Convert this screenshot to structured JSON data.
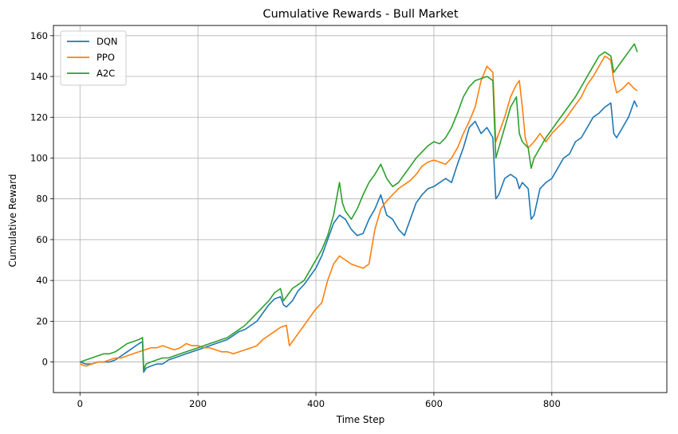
{
  "chart_data": {
    "type": "line",
    "title": "Cumulative Rewards - Bull Market",
    "xlabel": "Time Step",
    "ylabel": "Cumulative Reward",
    "xlim": [
      -45,
      995
    ],
    "ylim": [
      -15,
      165
    ],
    "xticks": [
      0,
      200,
      400,
      600,
      800
    ],
    "yticks": [
      0,
      20,
      40,
      60,
      80,
      100,
      120,
      140,
      160
    ],
    "grid": true,
    "legend_position": "top-left",
    "series": [
      {
        "name": "DQN",
        "color": "#1f77b4",
        "points": [
          [
            0,
            0
          ],
          [
            10,
            -1
          ],
          [
            20,
            -1
          ],
          [
            30,
            0
          ],
          [
            40,
            0
          ],
          [
            50,
            0
          ],
          [
            60,
            1
          ],
          [
            70,
            3
          ],
          [
            80,
            5
          ],
          [
            90,
            7
          ],
          [
            100,
            9
          ],
          [
            106,
            10
          ],
          [
            108,
            -5
          ],
          [
            112,
            -3
          ],
          [
            120,
            -2
          ],
          [
            130,
            -1
          ],
          [
            140,
            -1
          ],
          [
            150,
            1
          ],
          [
            160,
            2
          ],
          [
            170,
            3
          ],
          [
            180,
            4
          ],
          [
            190,
            5
          ],
          [
            200,
            6
          ],
          [
            210,
            7
          ],
          [
            220,
            8
          ],
          [
            230,
            9
          ],
          [
            240,
            10
          ],
          [
            250,
            11
          ],
          [
            260,
            13
          ],
          [
            270,
            15
          ],
          [
            280,
            16
          ],
          [
            290,
            18
          ],
          [
            300,
            20
          ],
          [
            310,
            24
          ],
          [
            320,
            28
          ],
          [
            330,
            31
          ],
          [
            340,
            32
          ],
          [
            345,
            28
          ],
          [
            350,
            27
          ],
          [
            360,
            30
          ],
          [
            370,
            35
          ],
          [
            380,
            38
          ],
          [
            390,
            42
          ],
          [
            400,
            46
          ],
          [
            410,
            52
          ],
          [
            420,
            60
          ],
          [
            430,
            68
          ],
          [
            440,
            72
          ],
          [
            450,
            70
          ],
          [
            460,
            65
          ],
          [
            470,
            62
          ],
          [
            480,
            63
          ],
          [
            490,
            70
          ],
          [
            500,
            75
          ],
          [
            510,
            82
          ],
          [
            520,
            72
          ],
          [
            530,
            70
          ],
          [
            540,
            65
          ],
          [
            550,
            62
          ],
          [
            560,
            70
          ],
          [
            570,
            78
          ],
          [
            580,
            82
          ],
          [
            590,
            85
          ],
          [
            600,
            86
          ],
          [
            610,
            88
          ],
          [
            620,
            90
          ],
          [
            630,
            88
          ],
          [
            640,
            97
          ],
          [
            650,
            105
          ],
          [
            660,
            115
          ],
          [
            670,
            118
          ],
          [
            680,
            112
          ],
          [
            690,
            115
          ],
          [
            700,
            110
          ],
          [
            705,
            80
          ],
          [
            710,
            82
          ],
          [
            720,
            90
          ],
          [
            730,
            92
          ],
          [
            740,
            90
          ],
          [
            745,
            85
          ],
          [
            750,
            88
          ],
          [
            760,
            85
          ],
          [
            765,
            70
          ],
          [
            770,
            72
          ],
          [
            780,
            85
          ],
          [
            790,
            88
          ],
          [
            800,
            90
          ],
          [
            810,
            95
          ],
          [
            820,
            100
          ],
          [
            830,
            102
          ],
          [
            840,
            108
          ],
          [
            850,
            110
          ],
          [
            860,
            115
          ],
          [
            870,
            120
          ],
          [
            880,
            122
          ],
          [
            890,
            125
          ],
          [
            900,
            127
          ],
          [
            905,
            112
          ],
          [
            910,
            110
          ],
          [
            920,
            115
          ],
          [
            930,
            120
          ],
          [
            940,
            128
          ],
          [
            945,
            125
          ]
        ]
      },
      {
        "name": "PPO",
        "color": "#ff7f0e",
        "points": [
          [
            0,
            -1
          ],
          [
            10,
            -2
          ],
          [
            20,
            -1
          ],
          [
            30,
            0
          ],
          [
            40,
            0
          ],
          [
            50,
            1
          ],
          [
            60,
            2
          ],
          [
            70,
            2
          ],
          [
            80,
            3
          ],
          [
            90,
            4
          ],
          [
            100,
            5
          ],
          [
            110,
            6
          ],
          [
            120,
            7
          ],
          [
            130,
            7
          ],
          [
            140,
            8
          ],
          [
            150,
            7
          ],
          [
            160,
            6
          ],
          [
            170,
            7
          ],
          [
            180,
            9
          ],
          [
            190,
            8
          ],
          [
            200,
            8
          ],
          [
            210,
            7
          ],
          [
            220,
            7
          ],
          [
            230,
            6
          ],
          [
            240,
            5
          ],
          [
            250,
            5
          ],
          [
            260,
            4
          ],
          [
            270,
            5
          ],
          [
            280,
            6
          ],
          [
            290,
            7
          ],
          [
            300,
            8
          ],
          [
            310,
            11
          ],
          [
            320,
            13
          ],
          [
            330,
            15
          ],
          [
            340,
            17
          ],
          [
            350,
            18
          ],
          [
            355,
            8
          ],
          [
            360,
            10
          ],
          [
            370,
            14
          ],
          [
            380,
            18
          ],
          [
            390,
            22
          ],
          [
            400,
            26
          ],
          [
            410,
            29
          ],
          [
            420,
            40
          ],
          [
            430,
            48
          ],
          [
            440,
            52
          ],
          [
            450,
            50
          ],
          [
            460,
            48
          ],
          [
            470,
            47
          ],
          [
            480,
            46
          ],
          [
            490,
            48
          ],
          [
            500,
            65
          ],
          [
            510,
            75
          ],
          [
            520,
            79
          ],
          [
            530,
            82
          ],
          [
            540,
            85
          ],
          [
            550,
            87
          ],
          [
            560,
            89
          ],
          [
            570,
            92
          ],
          [
            580,
            96
          ],
          [
            590,
            98
          ],
          [
            600,
            99
          ],
          [
            610,
            98
          ],
          [
            620,
            97
          ],
          [
            630,
            100
          ],
          [
            640,
            105
          ],
          [
            650,
            112
          ],
          [
            660,
            118
          ],
          [
            670,
            125
          ],
          [
            680,
            138
          ],
          [
            690,
            145
          ],
          [
            700,
            142
          ],
          [
            705,
            108
          ],
          [
            710,
            112
          ],
          [
            720,
            120
          ],
          [
            730,
            130
          ],
          [
            740,
            136
          ],
          [
            745,
            138
          ],
          [
            750,
            125
          ],
          [
            755,
            110
          ],
          [
            760,
            105
          ],
          [
            770,
            108
          ],
          [
            780,
            112
          ],
          [
            790,
            108
          ],
          [
            800,
            112
          ],
          [
            810,
            115
          ],
          [
            820,
            118
          ],
          [
            830,
            122
          ],
          [
            840,
            126
          ],
          [
            850,
            130
          ],
          [
            860,
            136
          ],
          [
            870,
            140
          ],
          [
            880,
            145
          ],
          [
            890,
            150
          ],
          [
            900,
            148
          ],
          [
            905,
            138
          ],
          [
            910,
            132
          ],
          [
            920,
            134
          ],
          [
            930,
            137
          ],
          [
            940,
            134
          ],
          [
            945,
            133
          ]
        ]
      },
      {
        "name": "A2C",
        "color": "#2ca02c",
        "points": [
          [
            0,
            0
          ],
          [
            10,
            1
          ],
          [
            20,
            2
          ],
          [
            30,
            3
          ],
          [
            40,
            4
          ],
          [
            50,
            4
          ],
          [
            60,
            5
          ],
          [
            70,
            7
          ],
          [
            80,
            9
          ],
          [
            90,
            10
          ],
          [
            100,
            11
          ],
          [
            106,
            12
          ],
          [
            108,
            -4
          ],
          [
            112,
            -1
          ],
          [
            120,
            0
          ],
          [
            130,
            1
          ],
          [
            140,
            2
          ],
          [
            150,
            2
          ],
          [
            160,
            3
          ],
          [
            170,
            4
          ],
          [
            180,
            5
          ],
          [
            190,
            6
          ],
          [
            200,
            7
          ],
          [
            210,
            8
          ],
          [
            220,
            9
          ],
          [
            230,
            10
          ],
          [
            240,
            11
          ],
          [
            250,
            12
          ],
          [
            260,
            14
          ],
          [
            270,
            16
          ],
          [
            280,
            18
          ],
          [
            290,
            21
          ],
          [
            300,
            24
          ],
          [
            310,
            27
          ],
          [
            320,
            30
          ],
          [
            330,
            34
          ],
          [
            340,
            36
          ],
          [
            345,
            30
          ],
          [
            350,
            32
          ],
          [
            360,
            36
          ],
          [
            370,
            38
          ],
          [
            380,
            40
          ],
          [
            390,
            45
          ],
          [
            400,
            50
          ],
          [
            410,
            55
          ],
          [
            420,
            62
          ],
          [
            430,
            72
          ],
          [
            440,
            88
          ],
          [
            445,
            78
          ],
          [
            450,
            74
          ],
          [
            460,
            70
          ],
          [
            470,
            75
          ],
          [
            480,
            82
          ],
          [
            490,
            88
          ],
          [
            500,
            92
          ],
          [
            510,
            97
          ],
          [
            520,
            90
          ],
          [
            530,
            86
          ],
          [
            540,
            88
          ],
          [
            550,
            92
          ],
          [
            560,
            96
          ],
          [
            570,
            100
          ],
          [
            580,
            103
          ],
          [
            590,
            106
          ],
          [
            600,
            108
          ],
          [
            610,
            107
          ],
          [
            620,
            110
          ],
          [
            630,
            115
          ],
          [
            640,
            122
          ],
          [
            650,
            130
          ],
          [
            660,
            135
          ],
          [
            670,
            138
          ],
          [
            680,
            139
          ],
          [
            690,
            140
          ],
          [
            700,
            138
          ],
          [
            705,
            100
          ],
          [
            710,
            105
          ],
          [
            720,
            115
          ],
          [
            730,
            125
          ],
          [
            740,
            130
          ],
          [
            745,
            112
          ],
          [
            750,
            108
          ],
          [
            760,
            105
          ],
          [
            765,
            95
          ],
          [
            770,
            100
          ],
          [
            780,
            105
          ],
          [
            790,
            110
          ],
          [
            800,
            114
          ],
          [
            810,
            118
          ],
          [
            820,
            122
          ],
          [
            830,
            126
          ],
          [
            840,
            130
          ],
          [
            850,
            135
          ],
          [
            860,
            140
          ],
          [
            870,
            145
          ],
          [
            880,
            150
          ],
          [
            890,
            152
          ],
          [
            900,
            150
          ],
          [
            905,
            142
          ],
          [
            910,
            144
          ],
          [
            920,
            148
          ],
          [
            930,
            152
          ],
          [
            940,
            156
          ],
          [
            945,
            152
          ]
        ]
      }
    ]
  }
}
